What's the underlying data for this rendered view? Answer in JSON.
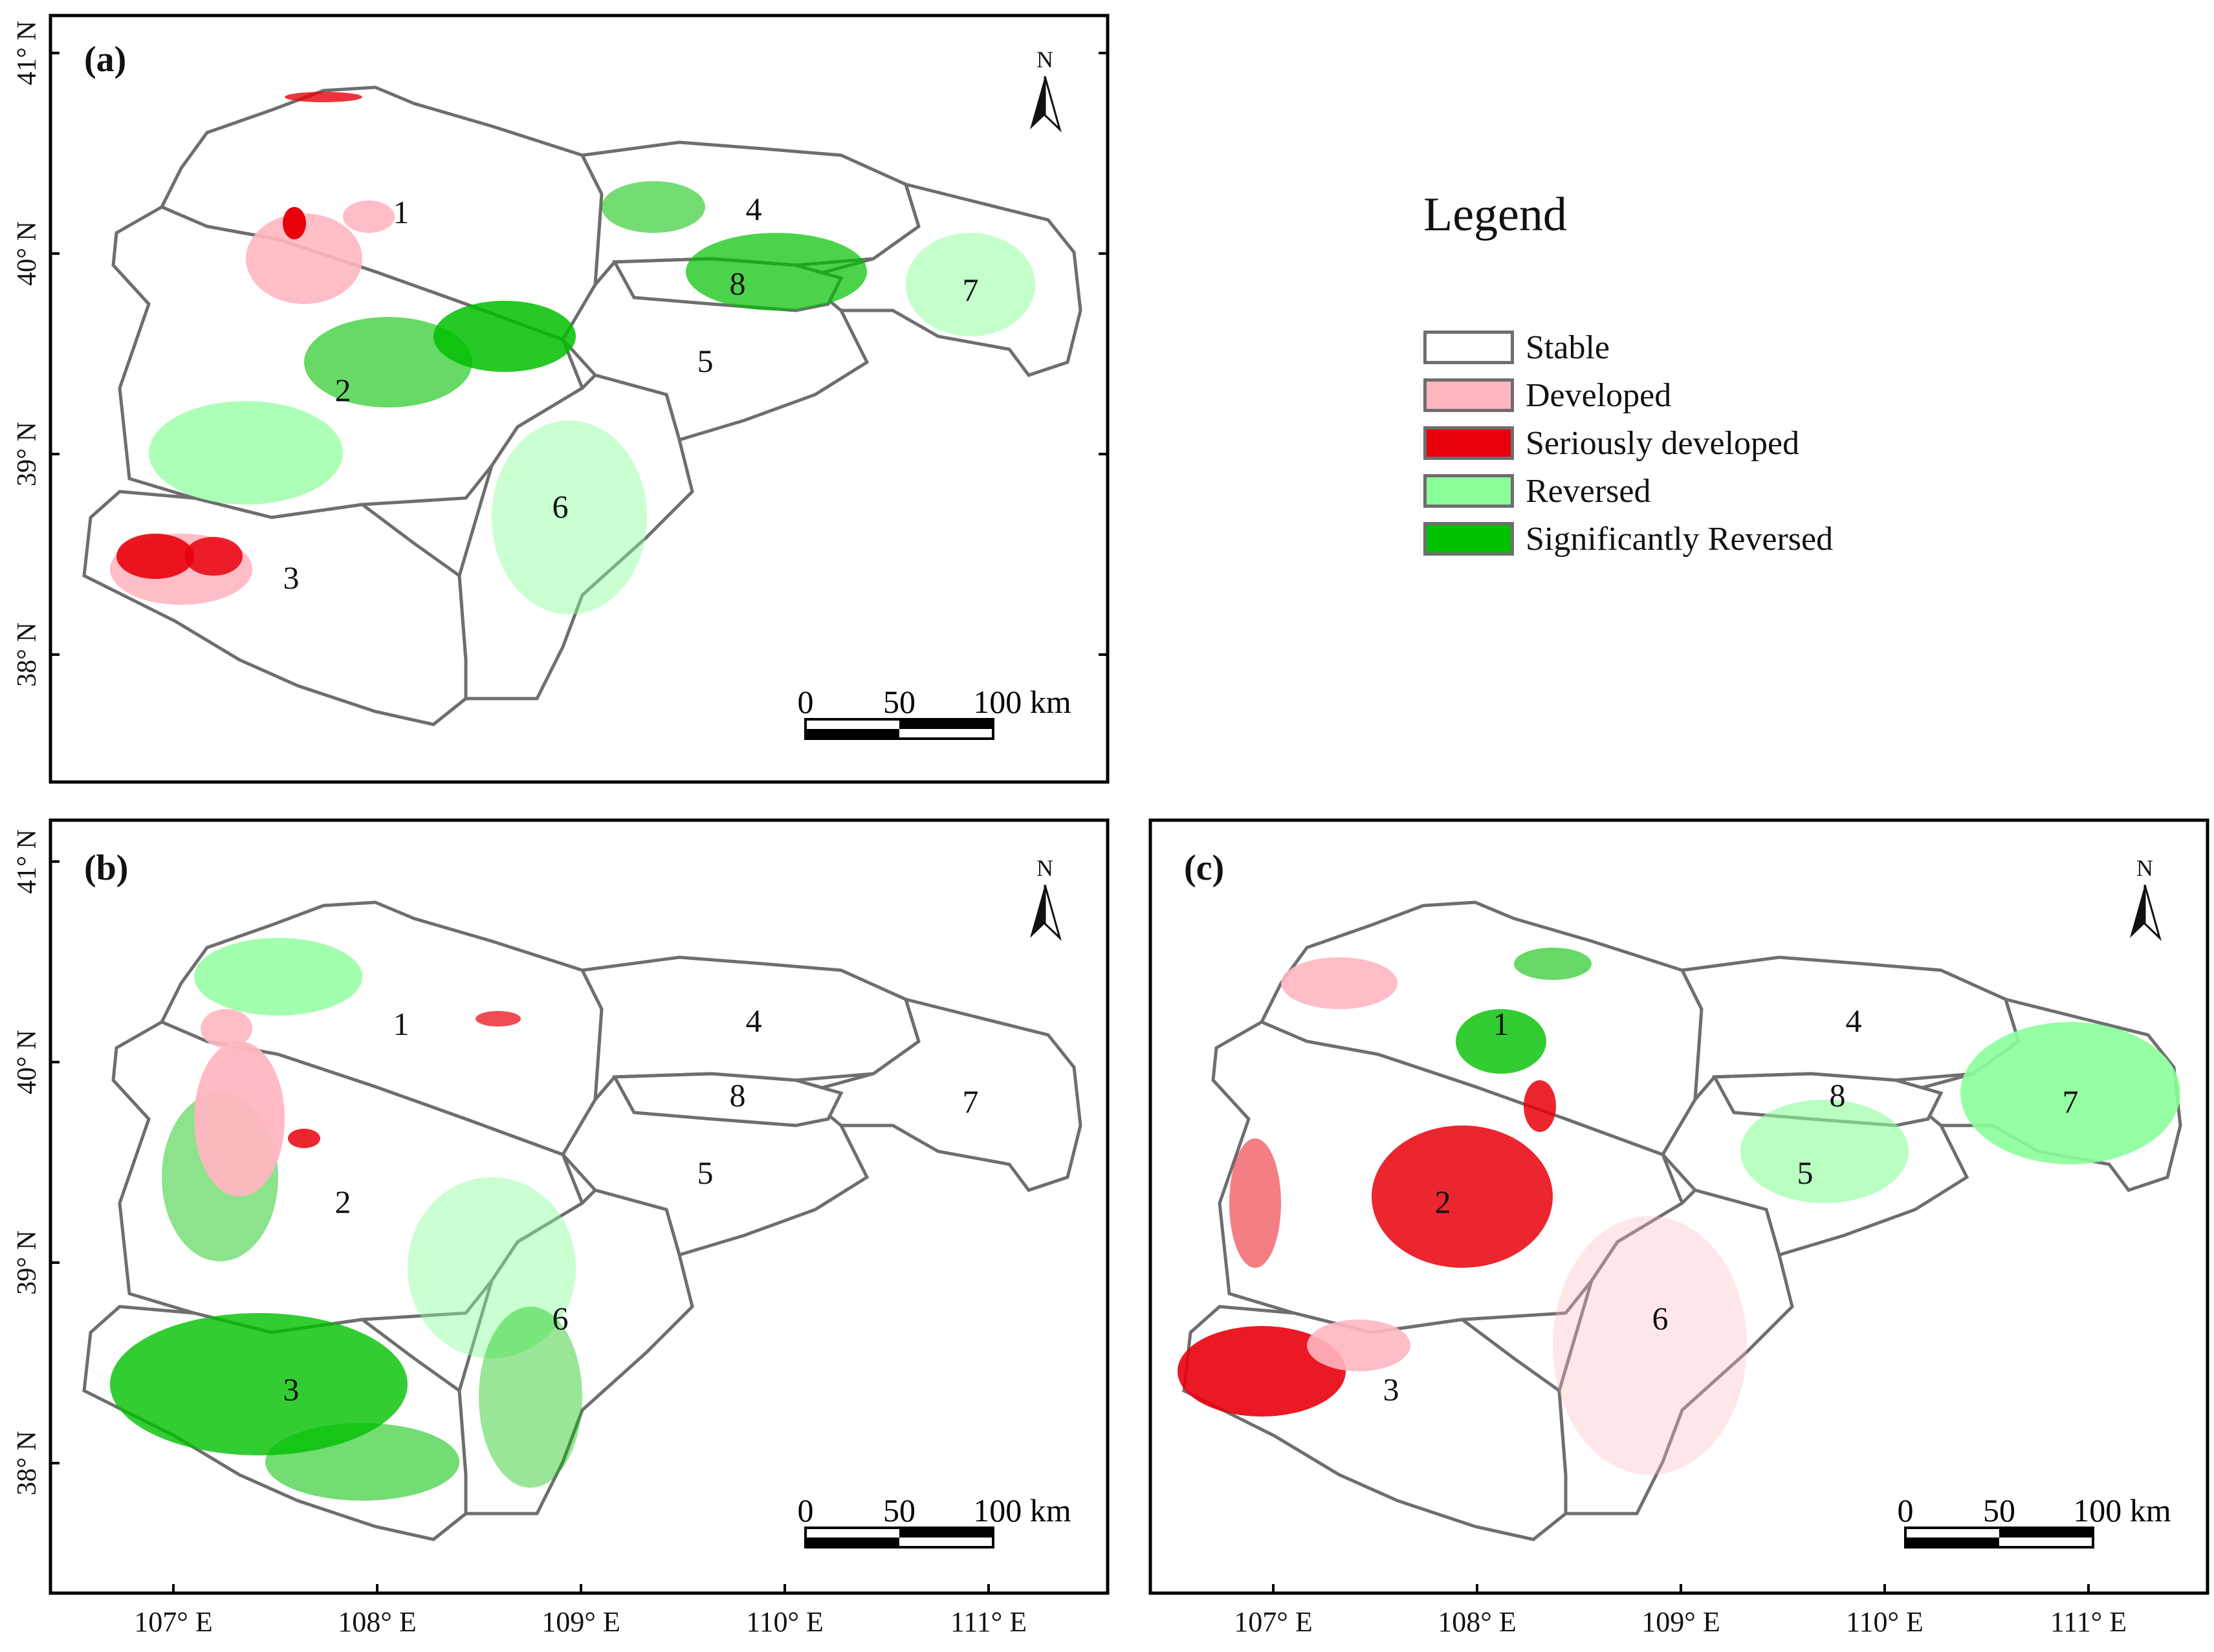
{
  "lat_ticks": [
    "41° N",
    "40° N",
    "39° N",
    "38° N"
  ],
  "lon_ticks": [
    "107° E",
    "108° E",
    "109° E",
    "110° E",
    "111° E"
  ],
  "north_label": "N",
  "scale": {
    "t0": "0",
    "t1": "50",
    "t2": "100 km"
  },
  "region_numbers": [
    "1",
    "2",
    "3",
    "4",
    "5",
    "6",
    "7",
    "8"
  ],
  "panels": [
    {
      "id": "a",
      "label": "(a)"
    },
    {
      "id": "b",
      "label": "(b)"
    },
    {
      "id": "c",
      "label": "(c)"
    }
  ],
  "legend": {
    "title": "Legend",
    "items": [
      {
        "label": "Stable",
        "color": "#ffffff"
      },
      {
        "label": "Developed",
        "color": "#ffb6c1"
      },
      {
        "label": "Seriously developed",
        "color": "#e8000b"
      },
      {
        "label": "Reversed",
        "color": "#8aff9a"
      },
      {
        "label": "Significantly Reversed",
        "color": "#00c000"
      }
    ]
  },
  "colors": {
    "boundary": "#6e6e6e",
    "frame": "#000000"
  }
}
